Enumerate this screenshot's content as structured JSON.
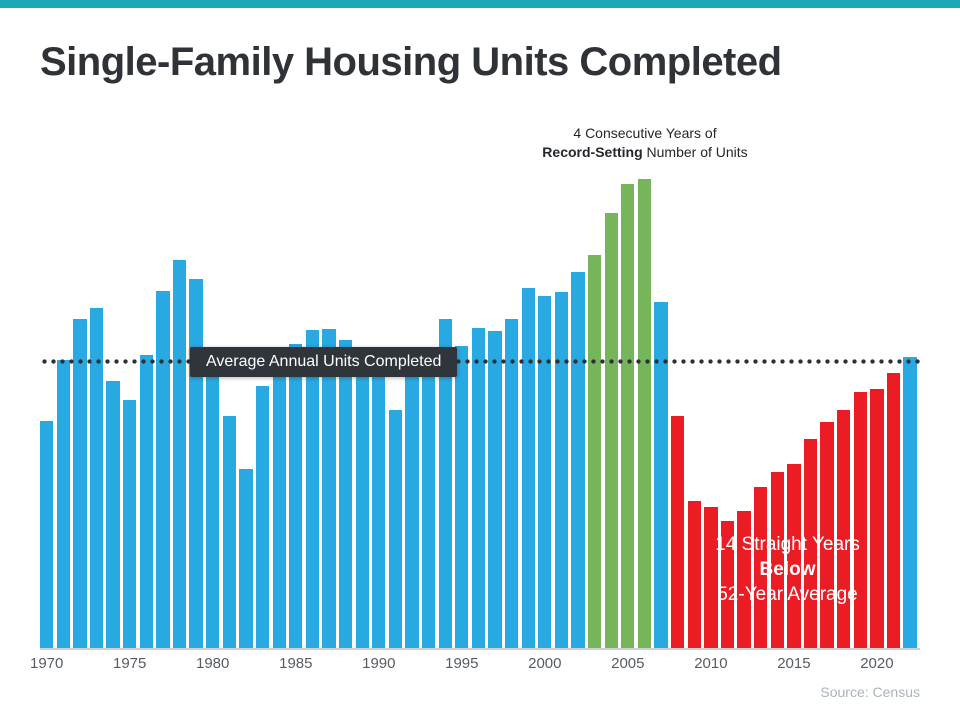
{
  "page": {
    "accent_color": "#1BA9B7",
    "background": "#FFFFFF"
  },
  "header": {
    "title": "Single-Family Housing Units Completed"
  },
  "annotation": {
    "line1": "4 Consecutive Years of",
    "line2_bold": "Record-Setting",
    "line2_rest": " Number of Units"
  },
  "average_tooltip": {
    "label": "Average Annual Units Completed"
  },
  "below_label": {
    "line1": "14 Straight Years",
    "line2": "Below",
    "line3": "52-Year Average"
  },
  "source": {
    "text": "Source: Census"
  },
  "chart_data": {
    "type": "bar",
    "title": "Single-Family Housing Units Completed",
    "unit": "thousands of units (estimated, no y-axis shown)",
    "grid": false,
    "legend": false,
    "years": [
      1970,
      1971,
      1972,
      1973,
      1974,
      1975,
      1976,
      1977,
      1978,
      1979,
      1980,
      1981,
      1982,
      1983,
      1984,
      1985,
      1986,
      1987,
      1988,
      1989,
      1990,
      1991,
      1992,
      1993,
      1994,
      1995,
      1996,
      1997,
      1998,
      1999,
      2000,
      2001,
      2002,
      2003,
      2004,
      2005,
      2006,
      2007,
      2008,
      2009,
      2010,
      2011,
      2012,
      2013,
      2014,
      2015,
      2016,
      2017,
      2018,
      2019,
      2020,
      2021,
      2022
    ],
    "values": [
      802,
      1014,
      1160,
      1197,
      940,
      875,
      1034,
      1258,
      1369,
      1301,
      957,
      819,
      631,
      924,
      1025,
      1072,
      1120,
      1123,
      1085,
      1026,
      966,
      838,
      964,
      1039,
      1160,
      1066,
      1129,
      1116,
      1160,
      1270,
      1242,
      1256,
      1325,
      1386,
      1532,
      1636,
      1654,
      1218,
      819,
      520,
      496,
      447,
      483,
      569,
      620,
      648,
      738,
      795,
      840,
      903,
      912,
      971,
      1025
    ],
    "x_tick_labels": [
      "1970",
      "1975",
      "1980",
      "1985",
      "1990",
      "1995",
      "2000",
      "2005",
      "2010",
      "2015",
      "2020"
    ],
    "ylim": [
      0,
      1720
    ],
    "average_value": 1009,
    "record_years": [
      2003,
      2004,
      2005,
      2006
    ],
    "below_average_start_year": 2008,
    "below_average_end_year": 2021,
    "colors": {
      "default": "#29A9E1",
      "record": "#77B55B",
      "below": "#EC1C24",
      "average_line": "#2B3137",
      "tooltip_bg": "#2F353A"
    }
  }
}
